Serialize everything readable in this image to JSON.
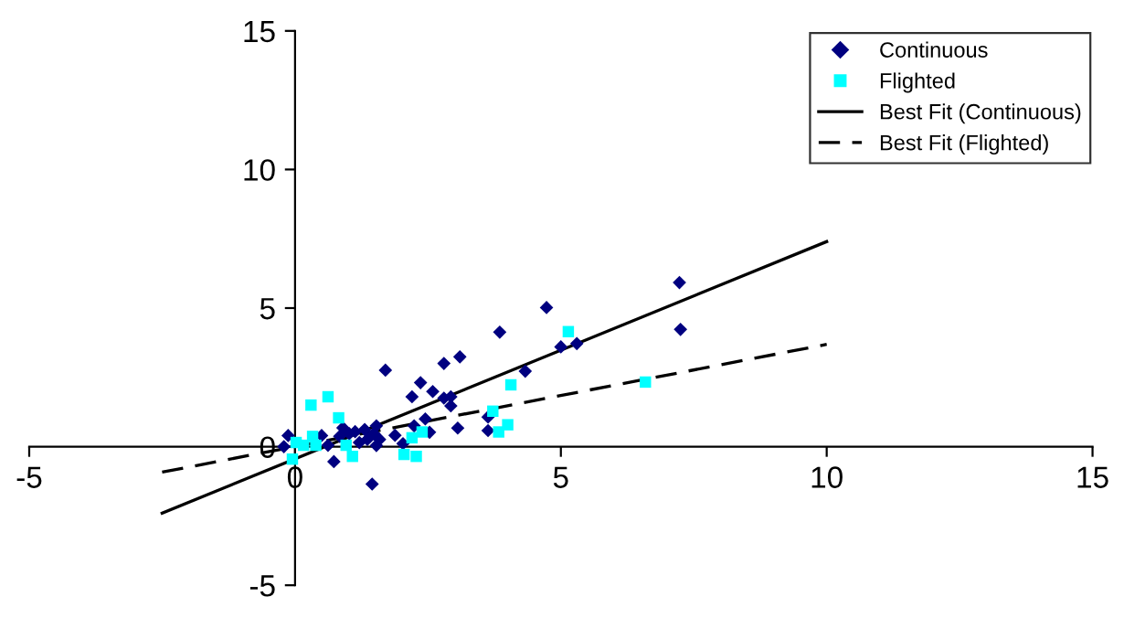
{
  "chart_data": {
    "type": "scatter",
    "xlim": [
      -5,
      15
    ],
    "ylim": [
      -5,
      15
    ],
    "xticks": [
      -5,
      0,
      5,
      10,
      15
    ],
    "yticks": [
      -5,
      0,
      5,
      10,
      15
    ],
    "grid": false,
    "legend": "top right",
    "series": [
      {
        "name": "Continuous",
        "marker": "diamond",
        "color": "#000080",
        "x": [
          -0.21,
          -0.13,
          0.73,
          1.45,
          1.7,
          2.8,
          3.1,
          3.85,
          4.73,
          7.23,
          7.25,
          5.0,
          5.3,
          4.33,
          2.36,
          2.2,
          2.59,
          2.8,
          2.93,
          2.93,
          2.45,
          2.24,
          2.53,
          3.06,
          3.63,
          3.63,
          1.88,
          2.03,
          0.9,
          0.84,
          1.13,
          1.31,
          1.53,
          1.59,
          1.36,
          1.21,
          1.02,
          0.5,
          0.62,
          1.48,
          1.53
        ],
        "values": [
          0,
          0.4,
          -0.54,
          -1.35,
          2.76,
          3.0,
          3.24,
          4.13,
          5.02,
          5.92,
          4.23,
          3.6,
          3.72,
          2.72,
          2.31,
          1.8,
          1.99,
          1.75,
          1.8,
          1.47,
          1.0,
          0.75,
          0.52,
          0.67,
          1.07,
          0.58,
          0.41,
          0.11,
          0.68,
          0.37,
          0.54,
          0.62,
          0.75,
          0.26,
          0.26,
          0.15,
          0.47,
          0.4,
          0.05,
          0.47,
          0.04
        ]
      },
      {
        "name": "Flighted",
        "marker": "square",
        "color": "#00ffff",
        "x": [
          0.3,
          0.62,
          0.82,
          0.02,
          0.16,
          0.33,
          -0.05,
          0.39,
          1.08,
          2.05,
          2.28,
          2.2,
          2.39,
          5.14,
          4.06,
          6.59,
          3.72,
          3.83,
          4.0,
          0.96
        ],
        "values": [
          1.5,
          1.8,
          1.04,
          0.15,
          0.05,
          0.37,
          -0.45,
          0.05,
          -0.35,
          -0.28,
          -0.35,
          0.32,
          0.53,
          4.15,
          2.23,
          2.33,
          1.28,
          0.53,
          0.79,
          0.05
        ]
      },
      {
        "name": "Best Fit (Continuous)",
        "type": "line",
        "line_style": "solid",
        "color": "#000000",
        "x": [
          -2.5,
          10
        ],
        "values": [
          -2.4,
          7.4
        ]
      },
      {
        "name": "Best Fit (Flighted)",
        "type": "line",
        "line_style": "dashed",
        "color": "#000000",
        "x": [
          -2.5,
          10
        ],
        "values": [
          -0.92,
          3.69
        ]
      }
    ]
  }
}
